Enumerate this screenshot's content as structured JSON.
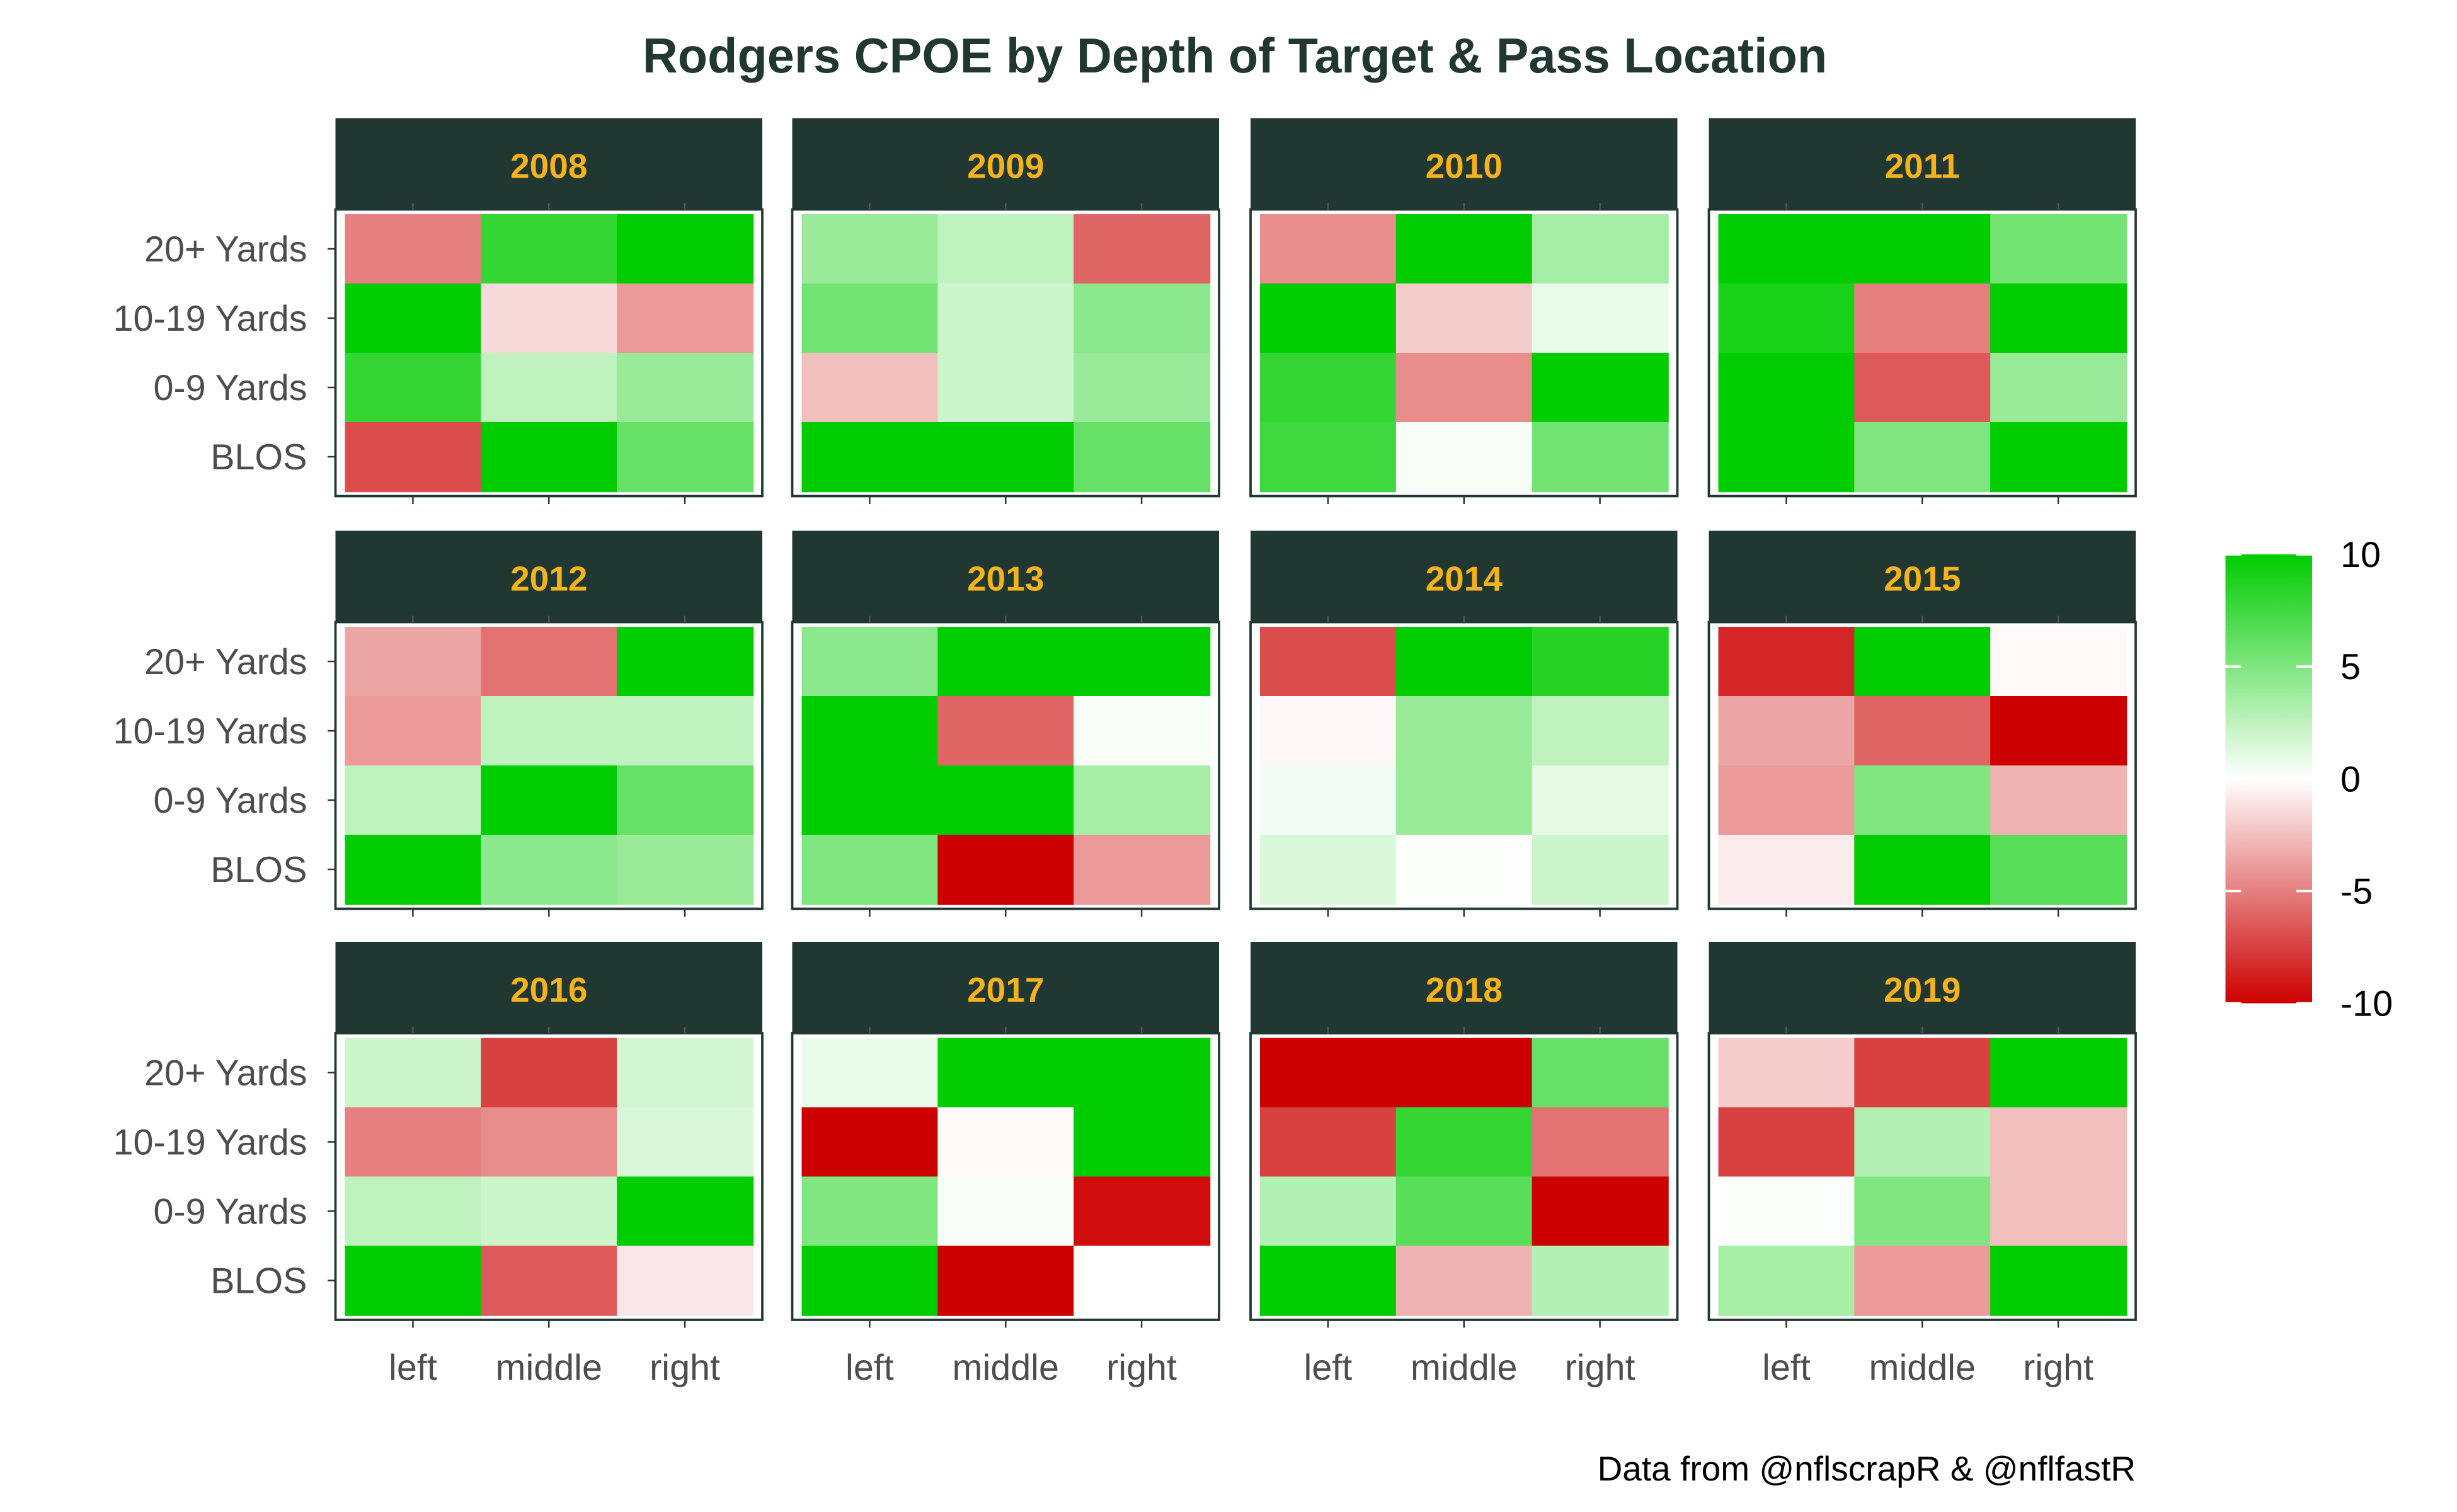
{
  "chart_data": {
    "type": "heatmap",
    "title": "Rodgers CPOE by Depth of Target & Pass Location",
    "caption": "Data from @nflscrapR & @nflfastR",
    "x_categories": [
      "left",
      "middle",
      "right"
    ],
    "y_categories": [
      "20+ Yards",
      "10-19 Yards",
      "0-9 Yards",
      "BLOS"
    ],
    "fill_range": [
      -10,
      10
    ],
    "legend": {
      "ticks": [
        "10",
        "5",
        "0",
        "-5",
        "-10"
      ],
      "tick_values": [
        10,
        5,
        0,
        -5,
        -10
      ],
      "placement": "right"
    },
    "colors": {
      "high": "#00CC00",
      "mid": "#FFFFFF",
      "low": "#CC0000",
      "strip_bg": "#213732",
      "strip_text": "#F5B21A",
      "title": "#213732"
    },
    "panels": [
      {
        "year": "2008",
        "values": [
          [
            -5,
            8,
            10
          ],
          [
            10,
            -1.5,
            -4
          ],
          [
            8,
            2.5,
            4
          ],
          [
            -7,
            10,
            6
          ]
        ]
      },
      {
        "year": "2009",
        "values": [
          [
            4,
            2.5,
            -6
          ],
          [
            5.5,
            2,
            4.5
          ],
          [
            -2.5,
            2,
            4
          ],
          [
            10,
            10,
            6
          ]
        ]
      },
      {
        "year": "2010",
        "values": [
          [
            -4.5,
            10,
            3.5
          ],
          [
            10,
            -2,
            0.8
          ],
          [
            8,
            -4.5,
            10
          ],
          [
            7.5,
            0.3,
            5.5
          ]
        ]
      },
      {
        "year": "2011",
        "values": [
          [
            10,
            10,
            5.5
          ],
          [
            9,
            -5,
            10
          ],
          [
            10,
            -6.5,
            4
          ],
          [
            10,
            5,
            10
          ]
        ]
      },
      {
        "year": "2012",
        "values": [
          [
            -3.5,
            -5.5,
            10
          ],
          [
            -4,
            2.5,
            2.5
          ],
          [
            2.5,
            10,
            6
          ],
          [
            10,
            4.5,
            4
          ]
        ]
      },
      {
        "year": "2013",
        "values": [
          [
            4.5,
            10,
            10
          ],
          [
            10,
            -6,
            0.3
          ],
          [
            10,
            10,
            3.5
          ],
          [
            5,
            -10,
            -4
          ]
        ]
      },
      {
        "year": "2014",
        "values": [
          [
            -7,
            10,
            8.5
          ],
          [
            -0.3,
            4,
            2.5
          ],
          [
            0.5,
            4,
            1
          ],
          [
            1.5,
            0.1,
            2
          ]
        ]
      },
      {
        "year": "2015",
        "values": [
          [
            -8.5,
            10,
            -0.2
          ],
          [
            -3.5,
            -6,
            -10
          ],
          [
            -4,
            5,
            -3
          ],
          [
            -0.8,
            10,
            6.5
          ]
        ]
      },
      {
        "year": "2016",
        "values": [
          [
            2,
            -7.5,
            1.8
          ],
          [
            -5,
            -4.5,
            1.5
          ],
          [
            2.5,
            2,
            10
          ],
          [
            10,
            -6.5,
            -1
          ]
        ]
      },
      {
        "year": "2017",
        "values": [
          [
            0.8,
            10,
            10
          ],
          [
            -10,
            -0.2,
            10
          ],
          [
            5,
            0.3,
            -9.5
          ],
          [
            10,
            -10,
            0
          ]
        ]
      },
      {
        "year": "2018",
        "values": [
          [
            -10,
            -10,
            6
          ],
          [
            -7.5,
            8,
            -5.5
          ],
          [
            3,
            6.5,
            -10
          ],
          [
            10,
            -3,
            3
          ]
        ]
      },
      {
        "year": "2019",
        "values": [
          [
            -2,
            -7.5,
            10
          ],
          [
            -7.5,
            3,
            -2.5
          ],
          [
            0.1,
            5,
            -2.5
          ],
          [
            3.5,
            -4,
            10
          ]
        ]
      }
    ]
  }
}
